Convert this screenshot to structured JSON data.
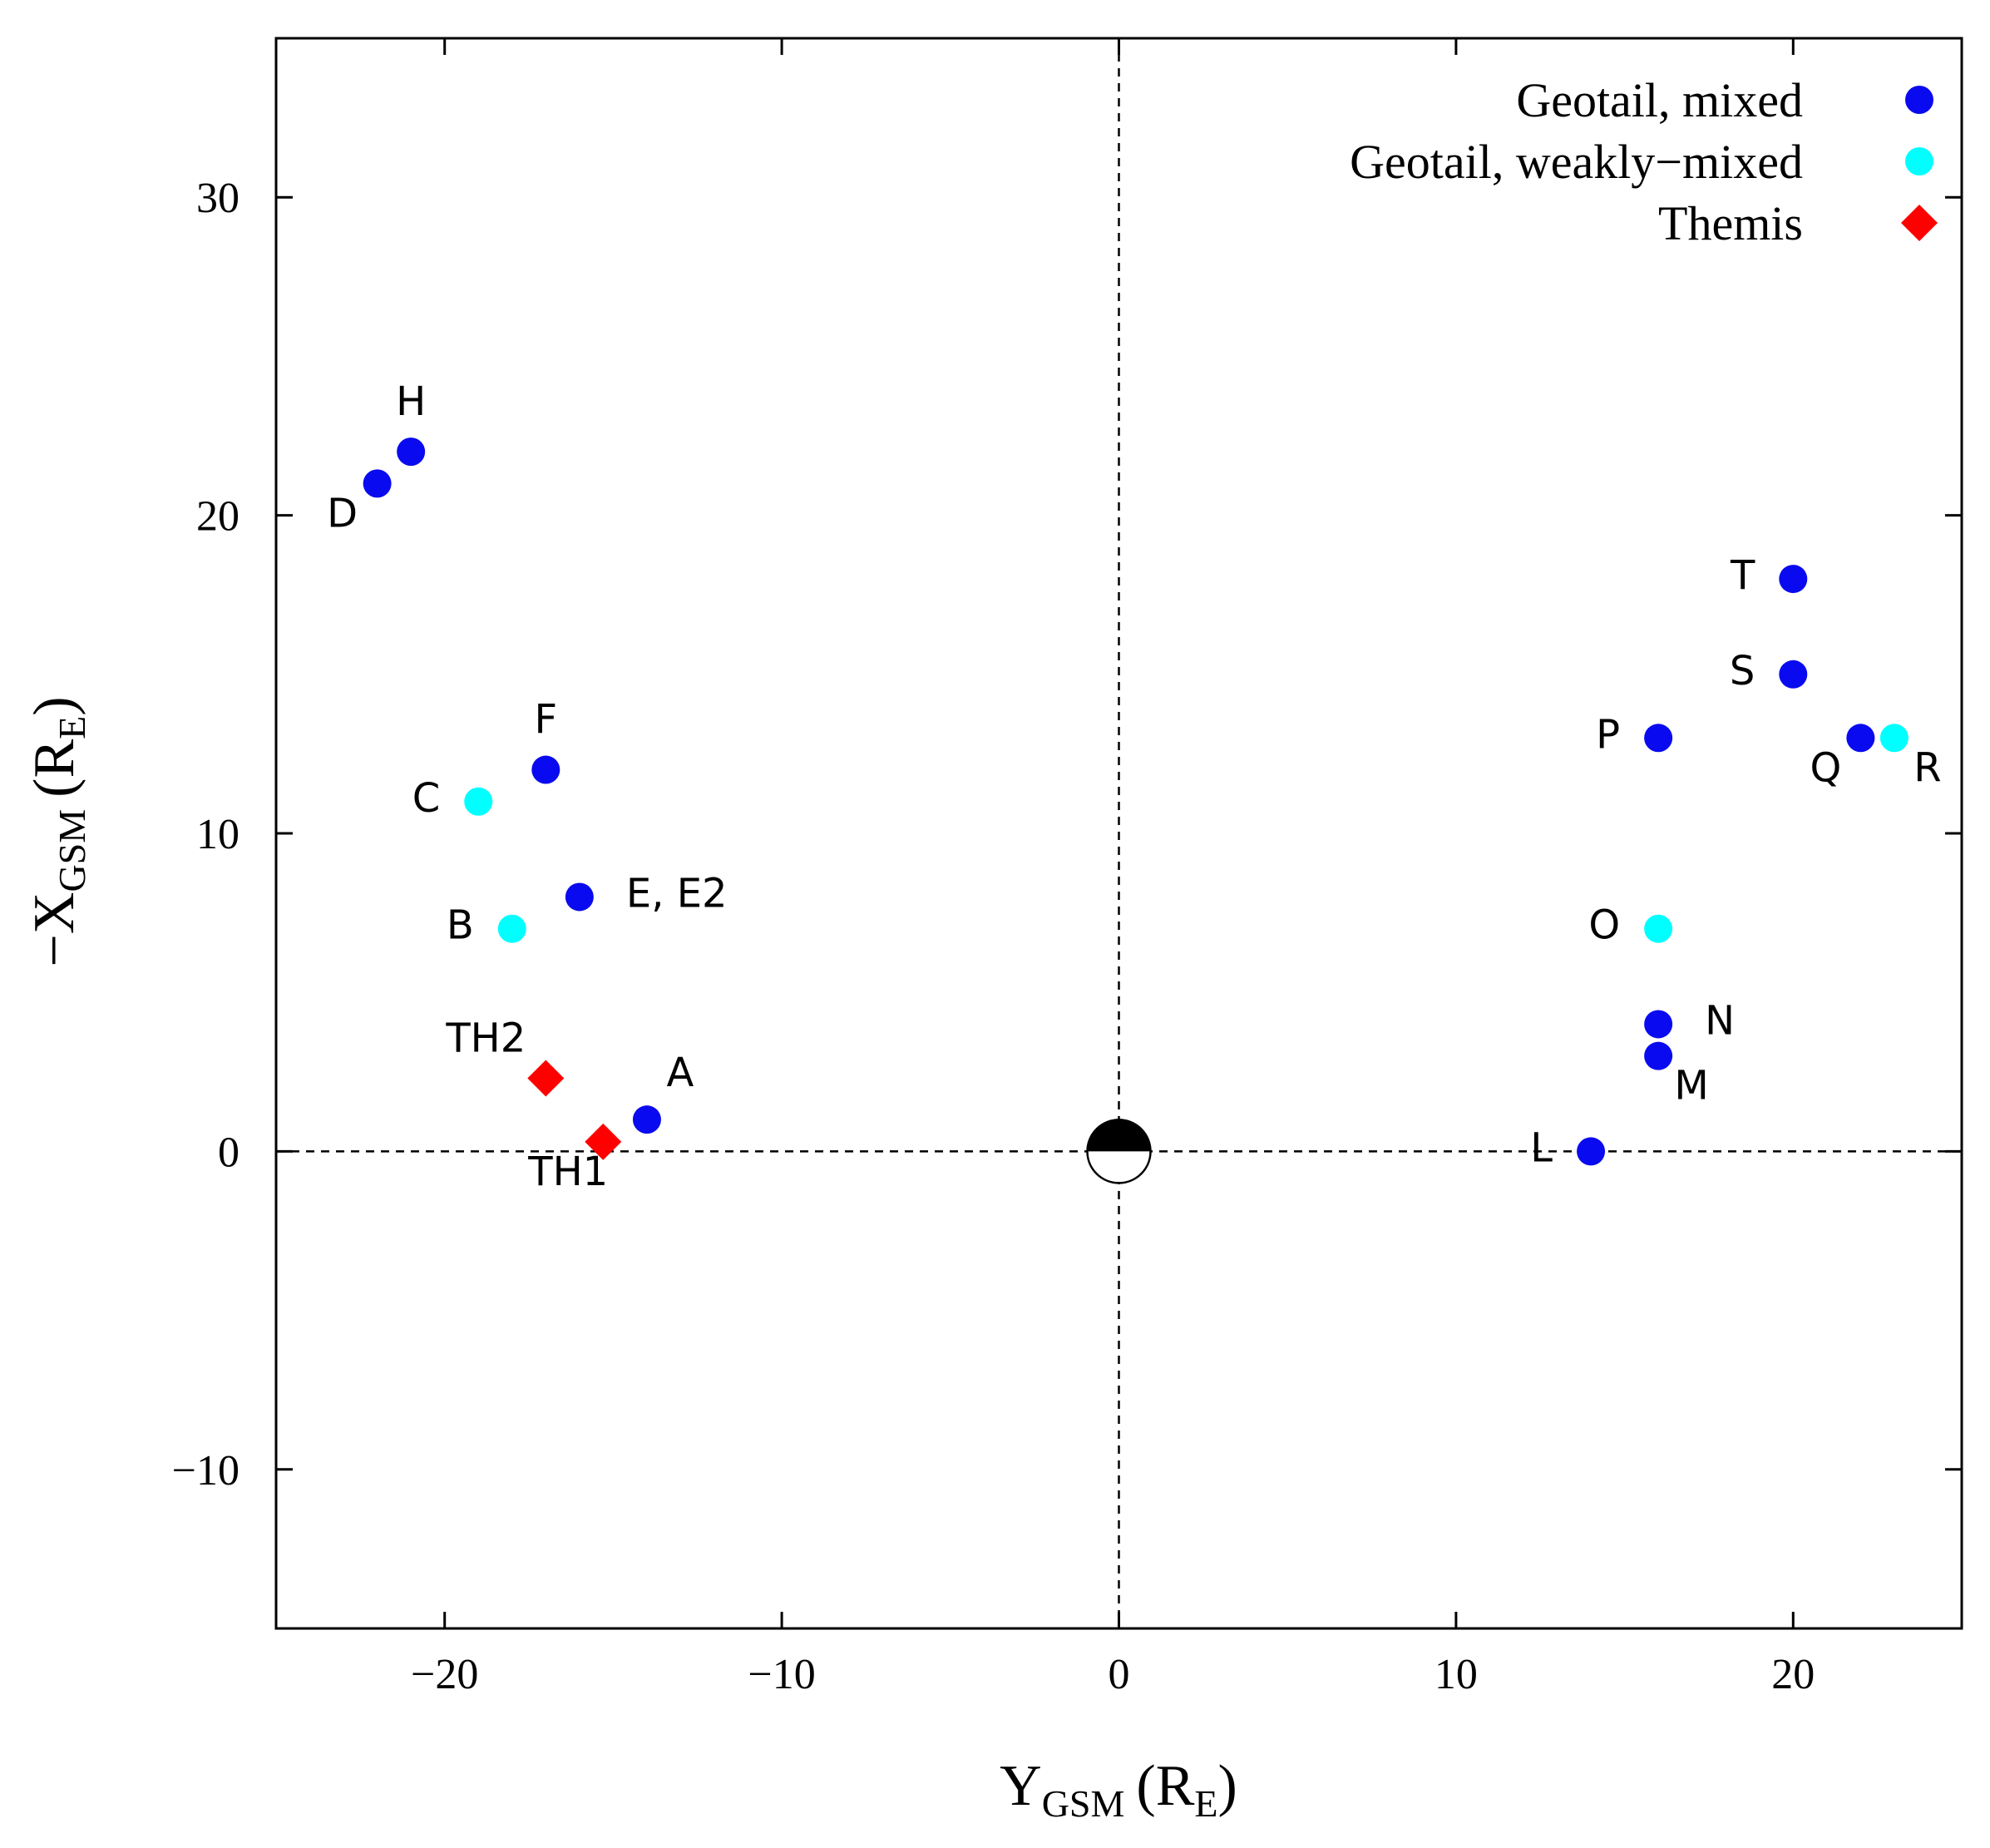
{
  "colors": {
    "geotail_mixed": "#0a0af0",
    "geotail_weak": "#00ffff",
    "themis": "#ff0000"
  },
  "chart_data": {
    "type": "scatter",
    "xlabel": {
      "main": "Y",
      "sub": "GSM",
      "unit_prefix": "(R",
      "unit_sub": "E",
      "unit_suffix": ")"
    },
    "ylabel": {
      "main": "−X",
      "sub": "GSM",
      "unit_prefix": "(R",
      "unit_sub": "E",
      "unit_suffix": ")"
    },
    "xlim": [
      -25,
      25
    ],
    "ylim": [
      -15,
      35
    ],
    "xticks": [
      {
        "value": -20,
        "label": "−20"
      },
      {
        "value": -10,
        "label": "−10"
      },
      {
        "value": 0,
        "label": "0"
      },
      {
        "value": 10,
        "label": "10"
      },
      {
        "value": 20,
        "label": "20"
      }
    ],
    "yticks": [
      {
        "value": -10,
        "label": "−10"
      },
      {
        "value": 0,
        "label": "0"
      },
      {
        "value": 10,
        "label": "10"
      },
      {
        "value": 20,
        "label": "20"
      },
      {
        "value": 30,
        "label": "30"
      }
    ],
    "reference_lines": {
      "x": 0,
      "y": 0,
      "style": "dashed"
    },
    "earth": {
      "x": 0,
      "y": 0
    },
    "legend": [
      {
        "label": "Geotail, mixed",
        "series": "geotail_mixed"
      },
      {
        "label": "Geotail, weakly−mixed",
        "series": "geotail_weak"
      },
      {
        "label": "Themis",
        "series": "themis"
      }
    ],
    "series": [
      {
        "name": "Geotail, mixed",
        "key": "geotail_mixed",
        "marker": "circle",
        "points": [
          {
            "label": "A",
            "x": -14,
            "y": 1,
            "label_pos": "ne"
          },
          {
            "label": "D",
            "x": -22,
            "y": 21,
            "label_pos": "sw"
          },
          {
            "label": "H",
            "x": -21,
            "y": 22,
            "label_pos": "n"
          },
          {
            "label": "F",
            "x": -17,
            "y": 12,
            "label_pos": "n"
          },
          {
            "label": "E, E2",
            "x": -16,
            "y": 8,
            "label_pos": "e"
          },
          {
            "label": "L",
            "x": 14,
            "y": 0,
            "label_pos": "w"
          },
          {
            "label": "M",
            "x": 16,
            "y": 3,
            "label_pos": "se"
          },
          {
            "label": "N",
            "x": 16,
            "y": 4,
            "label_pos": "e"
          },
          {
            "label": "P",
            "x": 16,
            "y": 13,
            "label_pos": "w"
          },
          {
            "label": "Q",
            "x": 22,
            "y": 13,
            "label_pos": "sw"
          },
          {
            "label": "S",
            "x": 20,
            "y": 15,
            "label_pos": "w"
          },
          {
            "label": "T",
            "x": 20,
            "y": 18,
            "label_pos": "w"
          }
        ]
      },
      {
        "name": "Geotail, weakly−mixed",
        "key": "geotail_weak",
        "marker": "circle",
        "points": [
          {
            "label": "B",
            "x": -18,
            "y": 7,
            "label_pos": "w"
          },
          {
            "label": "C",
            "x": -19,
            "y": 11,
            "label_pos": "w"
          },
          {
            "label": "O",
            "x": 16,
            "y": 7,
            "label_pos": "w"
          },
          {
            "label": "R",
            "x": 23,
            "y": 13,
            "label_pos": "se"
          }
        ]
      },
      {
        "name": "Themis",
        "key": "themis",
        "marker": "diamond",
        "points": [
          {
            "label": "TH1",
            "x": -15.3,
            "y": 0.3,
            "label_pos": "sw"
          },
          {
            "label": "TH2",
            "x": -17,
            "y": 2.3,
            "label_pos": "nw"
          }
        ]
      }
    ]
  }
}
